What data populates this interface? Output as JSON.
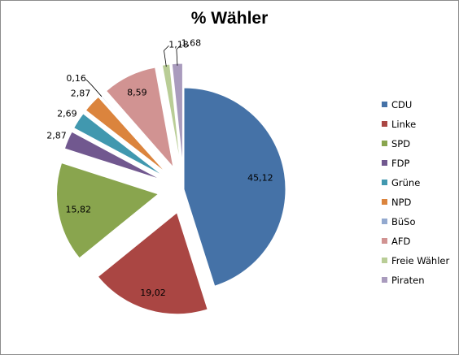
{
  "chart_data": {
    "type": "pie",
    "title": "% Wähler",
    "legend_position": "right",
    "series": [
      {
        "label": "CDU",
        "value": 45.12,
        "value_label": "45,12",
        "color": "#4572A7"
      },
      {
        "label": "Linke",
        "value": 19.02,
        "value_label": "19,02",
        "color": "#AA4643"
      },
      {
        "label": "SPD",
        "value": 15.82,
        "value_label": "15,82",
        "color": "#89A54E"
      },
      {
        "label": "FDP",
        "value": 2.87,
        "value_label": "2,87",
        "color": "#71588F"
      },
      {
        "label": "Grüne",
        "value": 2.69,
        "value_label": "2,69",
        "color": "#4198AF"
      },
      {
        "label": "NPD",
        "value": 2.87,
        "value_label": "2,87",
        "color": "#DB843D"
      },
      {
        "label": "BüSo",
        "value": 0.16,
        "value_label": "0,16",
        "color": "#93A9CF"
      },
      {
        "label": "AFD",
        "value": 8.59,
        "value_label": "8,59",
        "color": "#D19392"
      },
      {
        "label": "Freie Wähler",
        "value": 1.18,
        "value_label": "1,18",
        "color": "#B9CD96"
      },
      {
        "label": "Piraten",
        "value": 1.68,
        "value_label": "1,68",
        "color": "#A99BBD"
      }
    ]
  }
}
